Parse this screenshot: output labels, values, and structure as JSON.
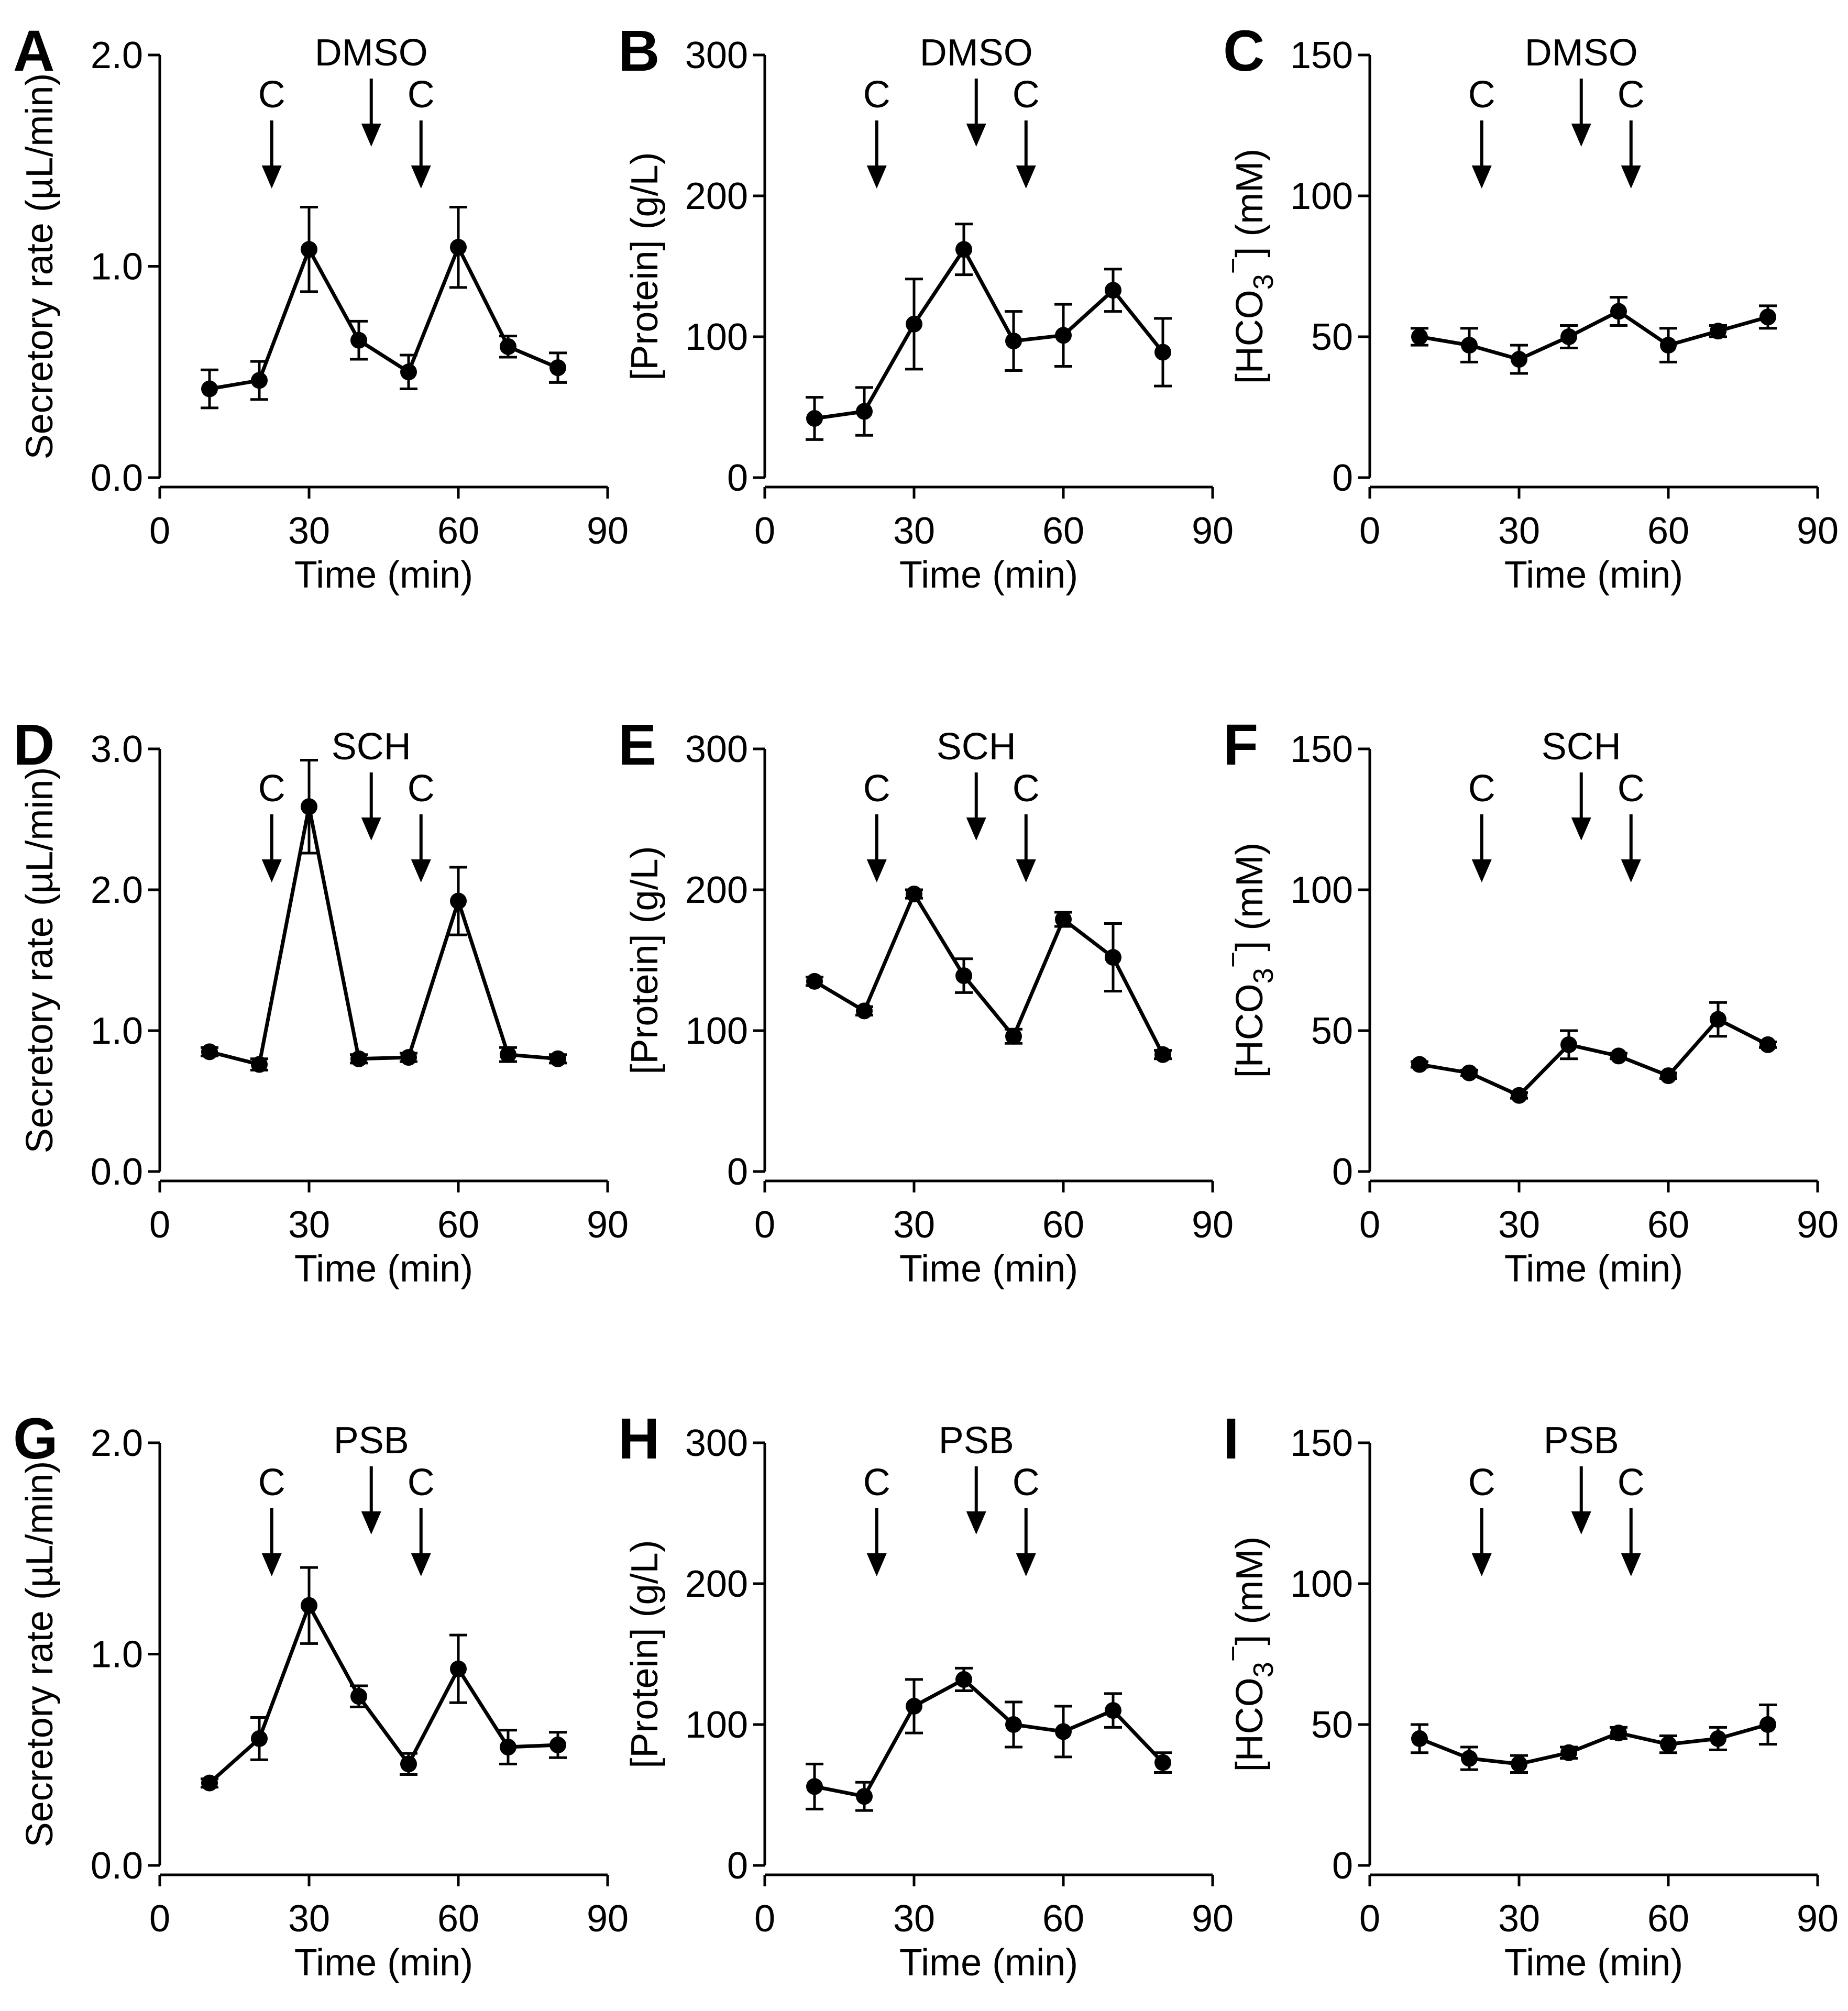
{
  "figure": {
    "chart_data": [
      {
        "panel": "A",
        "type": "line",
        "xlabel": "Time (min)",
        "ylabel": "Secretory rate (µL/min)",
        "xlim": [
          0,
          90
        ],
        "ylim": [
          0,
          2.0
        ],
        "xticks": [
          0,
          30,
          60,
          90
        ],
        "xtick_labels": [
          "0",
          "30",
          "60",
          "90"
        ],
        "yticks": [
          0,
          1.0,
          2.0
        ],
        "ytick_labels": [
          "0.0",
          "1.0",
          "2.0"
        ],
        "treatment": "DMSO",
        "arrows": [
          {
            "label": "C",
            "x": 22.5
          },
          {
            "label": "",
            "x": 42.5
          },
          {
            "label": "C",
            "x": 52.5
          }
        ],
        "series": [
          {
            "x": [
              10,
              20,
              30,
              40,
              50,
              60,
              70,
              80
            ],
            "y": [
              0.42,
              0.46,
              1.08,
              0.65,
              0.5,
              1.09,
              0.62,
              0.52
            ],
            "err": [
              0.09,
              0.09,
              0.2,
              0.09,
              0.08,
              0.19,
              0.05,
              0.07
            ]
          }
        ]
      },
      {
        "panel": "B",
        "type": "line",
        "xlabel": "Time (min)",
        "ylabel": "[Protein] (g/L)",
        "xlim": [
          0,
          90
        ],
        "ylim": [
          0,
          300
        ],
        "xticks": [
          0,
          30,
          60,
          90
        ],
        "xtick_labels": [
          "0",
          "30",
          "60",
          "90"
        ],
        "yticks": [
          0,
          100,
          200,
          300
        ],
        "ytick_labels": [
          "0",
          "100",
          "200",
          "300"
        ],
        "treatment": "DMSO",
        "arrows": [
          {
            "label": "C",
            "x": 22.5
          },
          {
            "label": "",
            "x": 42.5
          },
          {
            "label": "C",
            "x": 52.5
          }
        ],
        "series": [
          {
            "x": [
              10,
              20,
              30,
              40,
              50,
              60,
              70,
              80
            ],
            "y": [
              42,
              47,
              109,
              162,
              97,
              101,
              133,
              89
            ],
            "err": [
              15,
              17,
              32,
              18,
              21,
              22,
              15,
              24
            ]
          }
        ]
      },
      {
        "panel": "C",
        "type": "line",
        "xlabel": "Time (min)",
        "ylabel_main": "[HCO",
        "ylabel_sub": "3",
        "ylabel_sup": "−",
        "ylabel_tail": "] (mM)",
        "xlim": [
          0,
          90
        ],
        "ylim": [
          0,
          150
        ],
        "xticks": [
          0,
          30,
          60,
          90
        ],
        "xtick_labels": [
          "0",
          "30",
          "60",
          "90"
        ],
        "yticks": [
          0,
          50,
          100,
          150
        ],
        "ytick_labels": [
          "0",
          "50",
          "100",
          "150"
        ],
        "treatment": "DMSO",
        "arrows": [
          {
            "label": "C",
            "x": 22.5
          },
          {
            "label": "",
            "x": 42.5
          },
          {
            "label": "C",
            "x": 52.5
          }
        ],
        "series": [
          {
            "x": [
              10,
              20,
              30,
              40,
              50,
              60,
              70,
              80
            ],
            "y": [
              50,
              47,
              42,
              50,
              59,
              47,
              52,
              57
            ],
            "err": [
              3,
              6,
              5,
              4,
              5,
              6,
              2,
              4
            ]
          }
        ]
      },
      {
        "panel": "D",
        "type": "line",
        "xlabel": "Time (min)",
        "ylabel": "Secretory rate (µL/min)",
        "xlim": [
          0,
          90
        ],
        "ylim": [
          0,
          3.0
        ],
        "xticks": [
          0,
          30,
          60,
          90
        ],
        "xtick_labels": [
          "0",
          "30",
          "60",
          "90"
        ],
        "yticks": [
          0,
          1.0,
          2.0,
          3.0
        ],
        "ytick_labels": [
          "0.0",
          "1.0",
          "2.0",
          "3.0"
        ],
        "treatment": "SCH",
        "arrows": [
          {
            "label": "C",
            "x": 22.5
          },
          {
            "label": "",
            "x": 42.5
          },
          {
            "label": "C",
            "x": 52.5
          }
        ],
        "series": [
          {
            "x": [
              10,
              20,
              30,
              40,
              50,
              60,
              70,
              80
            ],
            "y": [
              0.85,
              0.76,
              2.59,
              0.8,
              0.81,
              1.92,
              0.83,
              0.8
            ],
            "err": [
              0.03,
              0.04,
              0.33,
              0.03,
              0.03,
              0.24,
              0.05,
              0.03
            ]
          }
        ]
      },
      {
        "panel": "E",
        "type": "line",
        "xlabel": "Time (min)",
        "ylabel": "[Protein] (g/L)",
        "xlim": [
          0,
          90
        ],
        "ylim": [
          0,
          300
        ],
        "xticks": [
          0,
          30,
          60,
          90
        ],
        "xtick_labels": [
          "0",
          "30",
          "60",
          "90"
        ],
        "yticks": [
          0,
          100,
          200,
          300
        ],
        "ytick_labels": [
          "0",
          "100",
          "200",
          "300"
        ],
        "treatment": "SCH",
        "arrows": [
          {
            "label": "C",
            "x": 22.5
          },
          {
            "label": "",
            "x": 42.5
          },
          {
            "label": "C",
            "x": 52.5
          }
        ],
        "series": [
          {
            "x": [
              10,
              20,
              30,
              40,
              50,
              60,
              70,
              80
            ],
            "y": [
              135,
              114,
              197,
              139,
              96,
              179,
              152,
              83
            ],
            "err": [
              3,
              3,
              3,
              12,
              5,
              5,
              24,
              3
            ]
          }
        ]
      },
      {
        "panel": "F",
        "type": "line",
        "xlabel": "Time (min)",
        "ylabel_main": "[HCO",
        "ylabel_sub": "3",
        "ylabel_sup": "−",
        "ylabel_tail": "] (mM)",
        "xlim": [
          0,
          90
        ],
        "ylim": [
          0,
          150
        ],
        "xticks": [
          0,
          30,
          60,
          90
        ],
        "xtick_labels": [
          "0",
          "30",
          "60",
          "90"
        ],
        "yticks": [
          0,
          50,
          100,
          150
        ],
        "ytick_labels": [
          "0",
          "50",
          "100",
          "150"
        ],
        "treatment": "SCH",
        "arrows": [
          {
            "label": "C",
            "x": 22.5
          },
          {
            "label": "",
            "x": 42.5
          },
          {
            "label": "C",
            "x": 52.5
          }
        ],
        "series": [
          {
            "x": [
              10,
              20,
              30,
              40,
              50,
              60,
              70,
              80
            ],
            "y": [
              38,
              35,
              27,
              45,
              41,
              34,
              54,
              45
            ],
            "err": [
              1,
              1,
              1,
              5,
              1,
              1,
              6,
              1
            ]
          }
        ]
      },
      {
        "panel": "G",
        "type": "line",
        "xlabel": "Time (min)",
        "ylabel": "Secretory rate (µL/min)",
        "xlim": [
          0,
          90
        ],
        "ylim": [
          0,
          2.0
        ],
        "xticks": [
          0,
          30,
          60,
          90
        ],
        "xtick_labels": [
          "0",
          "30",
          "60",
          "90"
        ],
        "yticks": [
          0,
          1.0,
          2.0
        ],
        "ytick_labels": [
          "0.0",
          "1.0",
          "2.0"
        ],
        "treatment": "PSB",
        "arrows": [
          {
            "label": "C",
            "x": 22.5
          },
          {
            "label": "",
            "x": 42.5
          },
          {
            "label": "C",
            "x": 52.5
          }
        ],
        "series": [
          {
            "x": [
              10,
              20,
              30,
              40,
              50,
              60,
              70,
              80
            ],
            "y": [
              0.39,
              0.6,
              1.23,
              0.8,
              0.48,
              0.93,
              0.56,
              0.57
            ],
            "err": [
              0.02,
              0.1,
              0.18,
              0.05,
              0.05,
              0.16,
              0.08,
              0.06
            ]
          }
        ]
      },
      {
        "panel": "H",
        "type": "line",
        "xlabel": "Time (min)",
        "ylabel": "[Protein] (g/L)",
        "xlim": [
          0,
          90
        ],
        "ylim": [
          0,
          300
        ],
        "xticks": [
          0,
          30,
          60,
          90
        ],
        "xtick_labels": [
          "0",
          "30",
          "60",
          "90"
        ],
        "yticks": [
          0,
          100,
          200,
          300
        ],
        "ytick_labels": [
          "0",
          "100",
          "200",
          "300"
        ],
        "treatment": "PSB",
        "arrows": [
          {
            "label": "C",
            "x": 22.5
          },
          {
            "label": "",
            "x": 42.5
          },
          {
            "label": "C",
            "x": 52.5
          }
        ],
        "series": [
          {
            "x": [
              10,
              20,
              30,
              40,
              50,
              60,
              70,
              80
            ],
            "y": [
              56,
              49,
              113,
              132,
              100,
              95,
              110,
              73
            ],
            "err": [
              16,
              10,
              19,
              8,
              16,
              18,
              12,
              7
            ]
          }
        ]
      },
      {
        "panel": "I",
        "type": "line",
        "xlabel": "Time (min)",
        "ylabel_main": "[HCO",
        "ylabel_sub": "3",
        "ylabel_sup": "−",
        "ylabel_tail": "] (mM)",
        "xlim": [
          0,
          90
        ],
        "ylim": [
          0,
          150
        ],
        "xticks": [
          0,
          30,
          60,
          90
        ],
        "xtick_labels": [
          "0",
          "30",
          "60",
          "90"
        ],
        "yticks": [
          0,
          50,
          100,
          150
        ],
        "ytick_labels": [
          "0",
          "50",
          "100",
          "150"
        ],
        "treatment": "PSB",
        "arrows": [
          {
            "label": "C",
            "x": 22.5
          },
          {
            "label": "",
            "x": 42.5
          },
          {
            "label": "C",
            "x": 52.5
          }
        ],
        "series": [
          {
            "x": [
              10,
              20,
              30,
              40,
              50,
              60,
              70,
              80
            ],
            "y": [
              45,
              38,
              36,
              40,
              47,
              43,
              45,
              50
            ],
            "err": [
              5,
              4,
              3,
              2,
              2,
              3,
              4,
              7
            ]
          }
        ]
      }
    ]
  }
}
